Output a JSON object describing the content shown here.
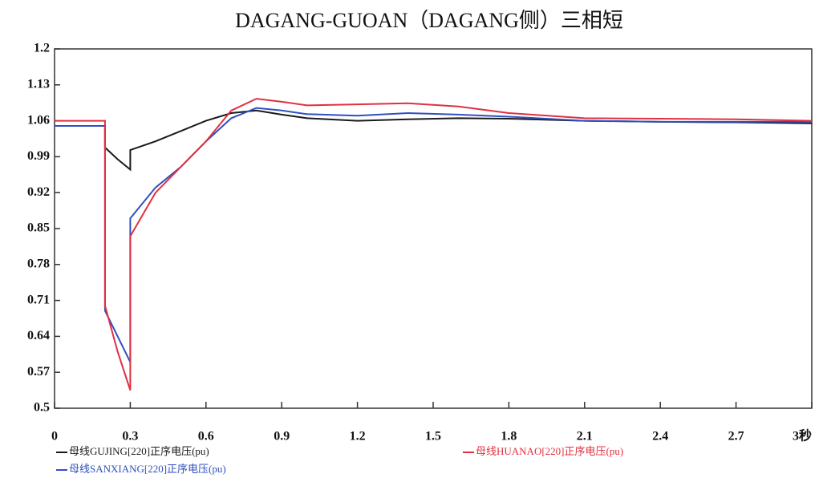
{
  "chart_data": {
    "type": "line",
    "title": "DAGANG-GUOAN（DAGANG侧）三相短",
    "x": [
      0,
      0.2,
      0.2,
      0.25,
      0.3,
      0.3,
      0.4,
      0.5,
      0.6,
      0.7,
      0.8,
      0.9,
      1.0,
      1.2,
      1.4,
      1.6,
      1.8,
      2.1,
      2.4,
      2.7,
      3
    ],
    "series": [
      {
        "name": "母线GUJING[220]正序电压(pu)",
        "color": "#1a1a1a",
        "values": [
          1.05,
          1.05,
          1.008,
          0.985,
          0.965,
          1.003,
          1.02,
          1.04,
          1.06,
          1.075,
          1.08,
          1.072,
          1.065,
          1.06,
          1.063,
          1.065,
          1.064,
          1.06,
          1.058,
          1.057,
          1.055
        ]
      },
      {
        "name": "母线SANXIANG[220]正序电压(pu)",
        "color": "#3050c0",
        "values": [
          1.05,
          1.05,
          0.69,
          0.64,
          0.59,
          0.87,
          0.93,
          0.97,
          1.02,
          1.065,
          1.085,
          1.08,
          1.073,
          1.07,
          1.075,
          1.072,
          1.068,
          1.06,
          1.058,
          1.058,
          1.058
        ]
      },
      {
        "name": "母线HUANAO[220]正序电压(pu)",
        "color": "#e03040",
        "values": [
          1.06,
          1.06,
          0.7,
          0.61,
          0.535,
          0.835,
          0.92,
          0.97,
          1.02,
          1.08,
          1.103,
          1.097,
          1.09,
          1.092,
          1.094,
          1.088,
          1.075,
          1.065,
          1.064,
          1.063,
          1.06
        ]
      }
    ],
    "xlim": [
      0,
      3
    ],
    "xticks": [
      0,
      0.3,
      0.6,
      0.9,
      1.2,
      1.5,
      1.8,
      2.1,
      2.4,
      2.7,
      {
        "value": 3,
        "label": "3秒"
      }
    ],
    "ylim": [
      0.5,
      1.2
    ],
    "yticks": [
      0.5,
      0.57,
      0.64,
      0.71,
      0.78,
      0.85,
      0.92,
      0.99,
      1.06,
      1.13,
      1.2
    ]
  }
}
